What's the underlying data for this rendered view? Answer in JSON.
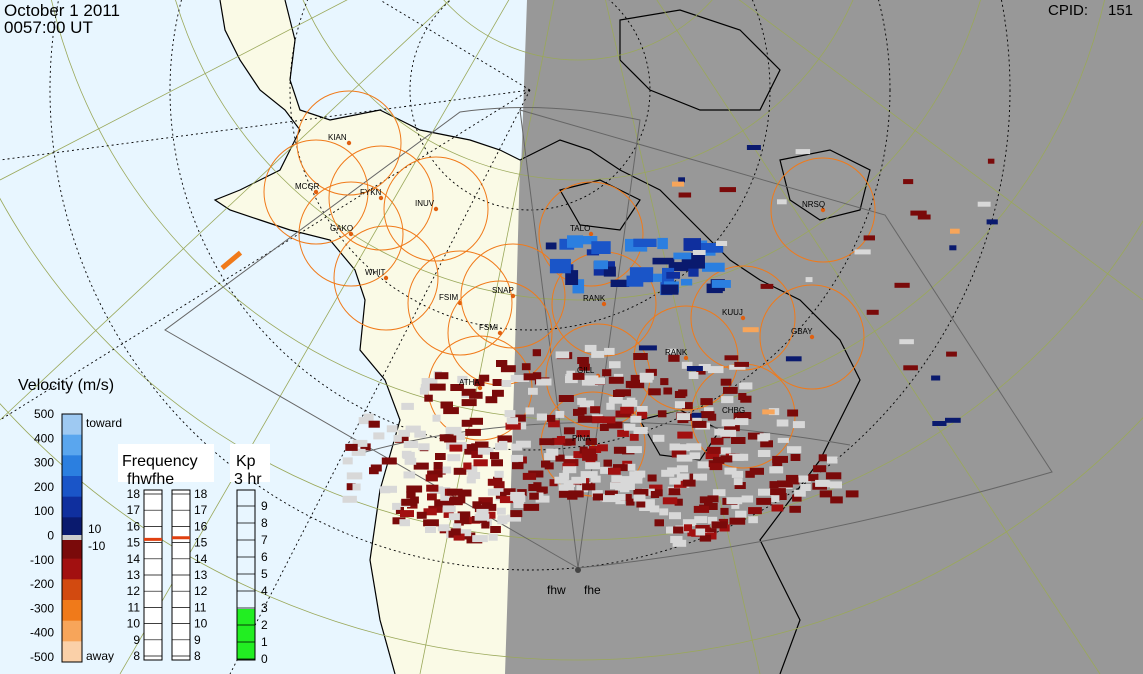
{
  "header": {
    "date": "October  1 2011",
    "time": "0057:00 UT",
    "cpid_label": "CPID:",
    "cpid_value": "151"
  },
  "radar_site_labels": [
    "fhw",
    "fhe"
  ],
  "stations": [
    "KIAN",
    "MCGR",
    "FYKN",
    "INUV",
    "GAKO",
    "WHIT",
    "FSIM",
    "SNAP",
    "FSMI",
    "ATHA",
    "GILL",
    "RANK",
    "TALO",
    "KUUJ",
    "GBAY",
    "RANK",
    "CHBG",
    "PINA",
    "NRSQ"
  ],
  "velocity_legend": {
    "title": "Velocity (m/s)",
    "toward": "toward",
    "away": "away",
    "ticks": [
      "500",
      "400",
      "300",
      "200",
      "100",
      "0",
      "-100",
      "-200",
      "-300",
      "-400",
      "-500"
    ],
    "side_labels": [
      "10",
      "-10"
    ],
    "colors": [
      "#9ec9f2",
      "#5aa6ee",
      "#2b7fe0",
      "#1a55c8",
      "#0f2f9e",
      "#0a1a6e",
      "#7a0a0a",
      "#a21010",
      "#d24a10",
      "#f07a1a",
      "#f7a55a",
      "#fad0a8"
    ]
  },
  "frequency_legend": {
    "title": "Frequency",
    "subtitle": "fhwfhe",
    "ticks": [
      "18",
      "17",
      "16",
      "15",
      "14",
      "13",
      "12",
      "11",
      "10",
      "9",
      "8"
    ],
    "fhw_value": 15.2,
    "fhe_value": 15.3,
    "marker_color": "#e04010"
  },
  "kp_legend": {
    "title": "Kp",
    "subtitle": "3 hr",
    "ticks": [
      "9",
      "8",
      "7",
      "6",
      "5",
      "4",
      "3",
      "2",
      "1",
      "0"
    ],
    "value": 3,
    "fill_color": "#22ee22"
  },
  "colors": {
    "ocean_day": "#e8f6ff",
    "land_day": "#fafae6",
    "night": "#989898",
    "grid": "#9aa85a",
    "fov": "#666666",
    "circle": "#f07a1a",
    "gray_scatter": "#d8d8d8"
  }
}
